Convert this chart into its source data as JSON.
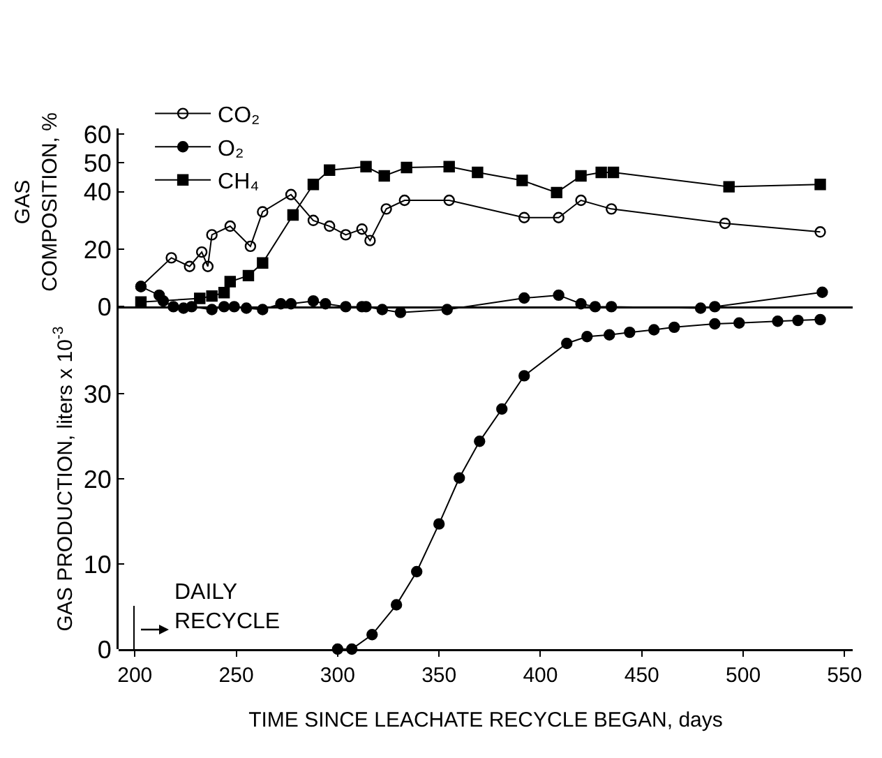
{
  "chart_data": [
    {
      "type": "line",
      "ylabel": "GAS\nCOMPOSITION, %",
      "xlim": [
        192,
        554
      ],
      "ylim": [
        -5,
        62
      ],
      "yticks": [
        0,
        20,
        40,
        50,
        60
      ],
      "tick_labels": "y",
      "legend": "top left",
      "series": [
        {
          "name": "CO₂",
          "color": "#000000",
          "marker": "circle-open",
          "x": [
            203,
            218,
            227,
            233,
            236,
            238,
            247,
            257,
            263,
            277,
            288,
            296,
            304,
            312,
            316,
            324,
            333,
            355,
            392,
            409,
            420,
            435,
            491,
            538
          ],
          "values": [
            7,
            17,
            14,
            19,
            14,
            25,
            28,
            21,
            33,
            39,
            30,
            28,
            25,
            27,
            23,
            34,
            37,
            37,
            31,
            31,
            37,
            34,
            29,
            26
          ]
        },
        {
          "name": "O₂",
          "color": "#000000",
          "marker": "circle",
          "x": [
            203,
            212,
            214,
            219,
            224,
            228,
            238,
            244,
            249,
            255,
            263,
            272,
            277,
            288,
            294,
            304,
            312,
            314,
            322,
            331,
            354,
            392,
            409,
            420,
            427,
            435,
            479,
            486,
            539
          ],
          "values": [
            7,
            4,
            2,
            0,
            -0.5,
            0,
            -1,
            0,
            0,
            -0.5,
            -1,
            1,
            1,
            2,
            1,
            0,
            0,
            0,
            -1,
            -2,
            -1,
            3,
            4,
            1,
            0,
            0,
            -0.5,
            0,
            5
          ]
        },
        {
          "name": "CH₄",
          "color": "#000000",
          "marker": "square",
          "x": [
            203,
            232,
            238,
            244,
            247,
            256,
            263,
            278,
            288,
            296,
            314,
            323,
            334,
            355,
            369,
            391,
            408,
            420,
            430,
            436,
            493,
            538
          ],
          "values": [
            1.6,
            2.9,
            3.7,
            4.9,
            8.7,
            10.8,
            15.2,
            31.9,
            42.5,
            47.5,
            48.7,
            45.5,
            48.4,
            48.7,
            46.7,
            43.9,
            39.7,
            45.5,
            46.7,
            46.7,
            41.7,
            42.5
          ]
        }
      ]
    },
    {
      "type": "line",
      "xlabel": "TIME SINCE LEACHATE RECYCLE BEGAN, days",
      "ylabel": "GAS PRODUCTION, liters x 10$^{-3}$",
      "xlim": [
        192,
        554
      ],
      "ylim": [
        0,
        40
      ],
      "xticks": [
        200,
        250,
        300,
        350,
        400,
        450,
        500,
        550
      ],
      "yticks": [
        0,
        10,
        20,
        30
      ],
      "marker": "circle",
      "annotations": [
        "DAILY\nRECYCLE"
      ],
      "series": [
        {
          "color": "#000000",
          "x": [
            300,
            307,
            317,
            329,
            339,
            350,
            360,
            370,
            381,
            392,
            413,
            423,
            434,
            444,
            456,
            466,
            486,
            498,
            517,
            527,
            538
          ],
          "values": [
            0,
            0,
            1.7,
            5.2,
            9.1,
            14.7,
            20.1,
            24.4,
            28.2,
            32.1,
            35.9,
            36.7,
            36.9,
            37.2,
            37.5,
            37.8,
            38.2,
            38.3,
            38.5,
            38.6,
            38.7
          ]
        }
      ]
    }
  ]
}
